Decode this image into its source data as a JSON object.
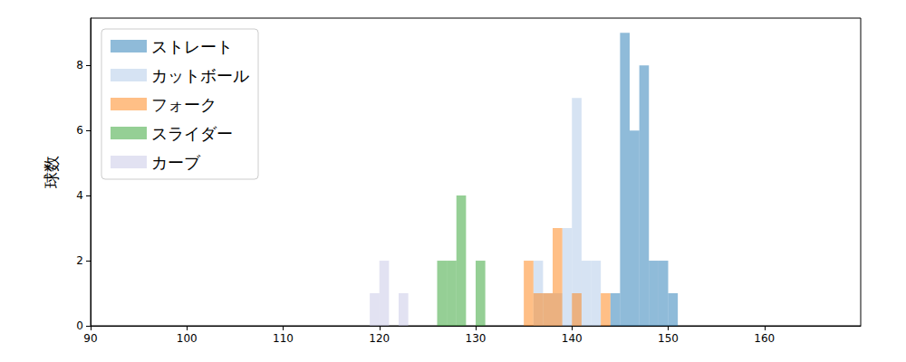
{
  "chart_data": {
    "type": "histogram",
    "ylabel": "球数",
    "bins": [
      119,
      120,
      121,
      122,
      123,
      124,
      125,
      126,
      127,
      128,
      129,
      130,
      131,
      132,
      133,
      134,
      135,
      136,
      137,
      138,
      139,
      140,
      141,
      142,
      143,
      144,
      145,
      146,
      147,
      148,
      149,
      150,
      151
    ],
    "series": [
      {
        "name": "ストレート",
        "color": "#1f77b4",
        "values": [
          0,
          0,
          0,
          0,
          0,
          0,
          0,
          0,
          0,
          0,
          0,
          0,
          0,
          0,
          0,
          0,
          0,
          0,
          0,
          0,
          0,
          0,
          0,
          0,
          0,
          1,
          9,
          6,
          8,
          2,
          2,
          1
        ]
      },
      {
        "name": "カットボール",
        "color": "#aec7e8",
        "values": [
          0,
          0,
          0,
          0,
          0,
          0,
          0,
          0,
          0,
          0,
          0,
          0,
          0,
          0,
          0,
          0,
          0,
          2,
          1,
          1,
          3,
          7,
          2,
          2,
          0,
          0,
          0,
          0,
          0,
          0,
          0,
          0
        ]
      },
      {
        "name": "フォーク",
        "color": "#ff7f0e",
        "values": [
          0,
          0,
          0,
          0,
          0,
          0,
          0,
          0,
          0,
          0,
          0,
          0,
          0,
          0,
          0,
          0,
          2,
          1,
          1,
          3,
          0,
          1,
          0,
          0,
          1,
          0,
          0,
          0,
          0,
          0,
          0,
          0
        ]
      },
      {
        "name": "スライダー",
        "color": "#2ca02c",
        "values": [
          0,
          0,
          0,
          0,
          0,
          0,
          0,
          2,
          2,
          4,
          0,
          2,
          0,
          0,
          0,
          0,
          0,
          0,
          0,
          0,
          0,
          0,
          0,
          0,
          0,
          0,
          0,
          0,
          0,
          0,
          0,
          0
        ]
      },
      {
        "name": "カーブ",
        "color": "#c5c6e6",
        "values": [
          1,
          2,
          0,
          1,
          0,
          0,
          0,
          0,
          0,
          0,
          0,
          0,
          0,
          0,
          0,
          0,
          0,
          0,
          0,
          0,
          0,
          0,
          0,
          0,
          0,
          0,
          0,
          0,
          0,
          0,
          0,
          0
        ]
      }
    ],
    "xlim": [
      90,
      170
    ],
    "ylim": [
      0,
      9.45
    ],
    "xticks": [
      90,
      100,
      110,
      120,
      130,
      140,
      150,
      160
    ],
    "yticks": [
      0,
      2,
      4,
      6,
      8
    ],
    "legend": "upper left",
    "grid": false
  }
}
